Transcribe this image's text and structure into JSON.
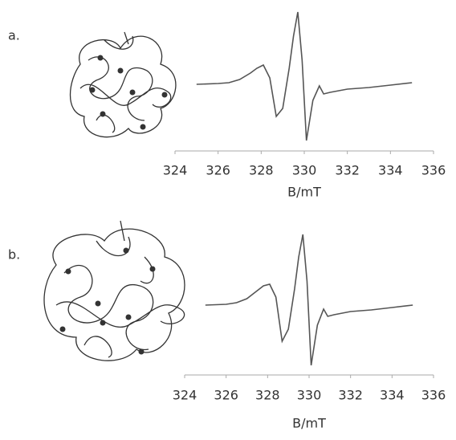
{
  "chart_data": [
    {
      "type": "line",
      "label": "a.",
      "xlabel": "B/mT",
      "color": "#555555",
      "x": [
        325,
        326,
        326.5,
        327,
        327.5,
        327.8,
        328.1,
        328.4,
        328.7,
        329,
        329.3,
        329.5,
        329.7,
        329.9,
        330.1,
        330.4,
        330.7,
        330.9,
        331.2,
        332,
        333,
        334,
        335
      ],
      "values": [
        0,
        1,
        2,
        6,
        14,
        20,
        24,
        8,
        -40,
        -30,
        20,
        60,
        90,
        30,
        -70,
        -20,
        -2,
        -12,
        -10,
        -6,
        -4,
        -1,
        2
      ],
      "xlim": [
        324,
        336
      ],
      "xticks": [
        324,
        326,
        328,
        330,
        332,
        334,
        336
      ],
      "ylim": [
        -85,
        95
      ]
    },
    {
      "type": "line",
      "label": "b.",
      "xlabel": "B/mT",
      "color": "#555555",
      "x": [
        325,
        326,
        326.5,
        327,
        327.5,
        327.8,
        328.1,
        328.4,
        328.7,
        329,
        329.3,
        329.5,
        329.7,
        329.9,
        330.1,
        330.4,
        330.7,
        330.9,
        331.2,
        332,
        333,
        334,
        335
      ],
      "values": [
        0,
        1,
        3,
        8,
        18,
        24,
        26,
        10,
        -45,
        -30,
        20,
        60,
        88,
        30,
        -75,
        -25,
        -5,
        -14,
        -12,
        -8,
        -6,
        -3,
        0
      ],
      "xlim": [
        324,
        336
      ],
      "xticks": [
        324,
        326,
        328,
        330,
        332,
        334,
        336
      ],
      "ylim": [
        -85,
        95
      ]
    }
  ]
}
